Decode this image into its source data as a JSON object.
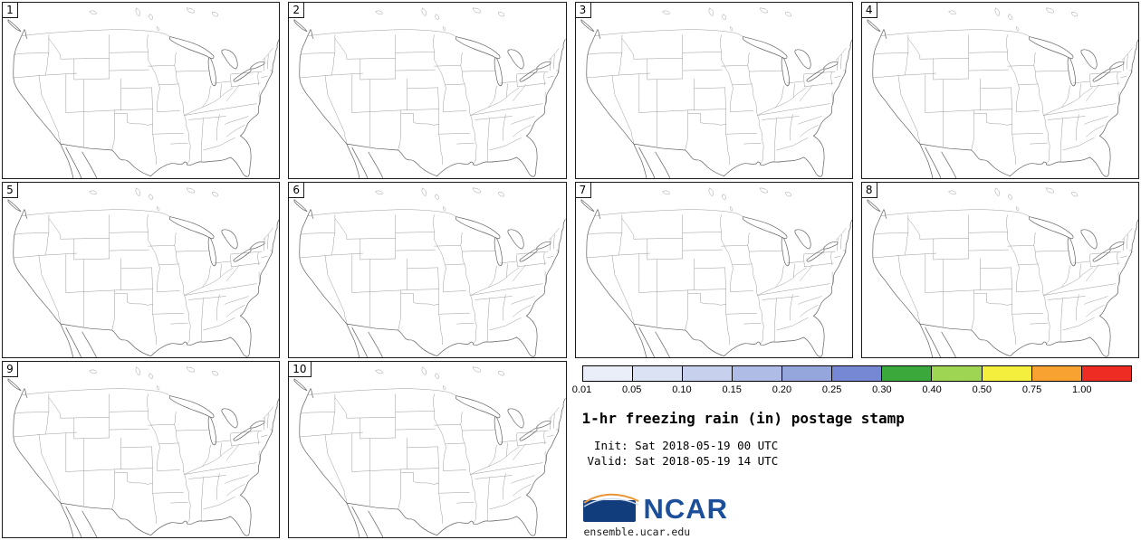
{
  "panels": [
    {
      "label": "1"
    },
    {
      "label": "2"
    },
    {
      "label": "3"
    },
    {
      "label": "4"
    },
    {
      "label": "5"
    },
    {
      "label": "6"
    },
    {
      "label": "7"
    },
    {
      "label": "8"
    },
    {
      "label": "9"
    },
    {
      "label": "10"
    }
  ],
  "legend": {
    "ticks": [
      "0.01",
      "0.05",
      "0.10",
      "0.15",
      "0.20",
      "0.25",
      "0.30",
      "0.40",
      "0.50",
      "0.75",
      "1.00"
    ],
    "colors": [
      "#eaeef9",
      "#dbe2f4",
      "#c7d1ee",
      "#aebce6",
      "#95a6dd",
      "#7687d3",
      "#3aa83a",
      "#9ed653",
      "#f4ef3c",
      "#f7a231",
      "#ee2c24"
    ]
  },
  "title": "1-hr freezing rain (in) postage stamp",
  "times": {
    "init": " Init: Sat 2018-05-19 00 UTC",
    "valid": "Valid: Sat 2018-05-19 14 UTC"
  },
  "branding": {
    "logo_text": "NCAR",
    "site": "ensemble.ucar.edu",
    "logo_blue": "#1b4f9c"
  }
}
